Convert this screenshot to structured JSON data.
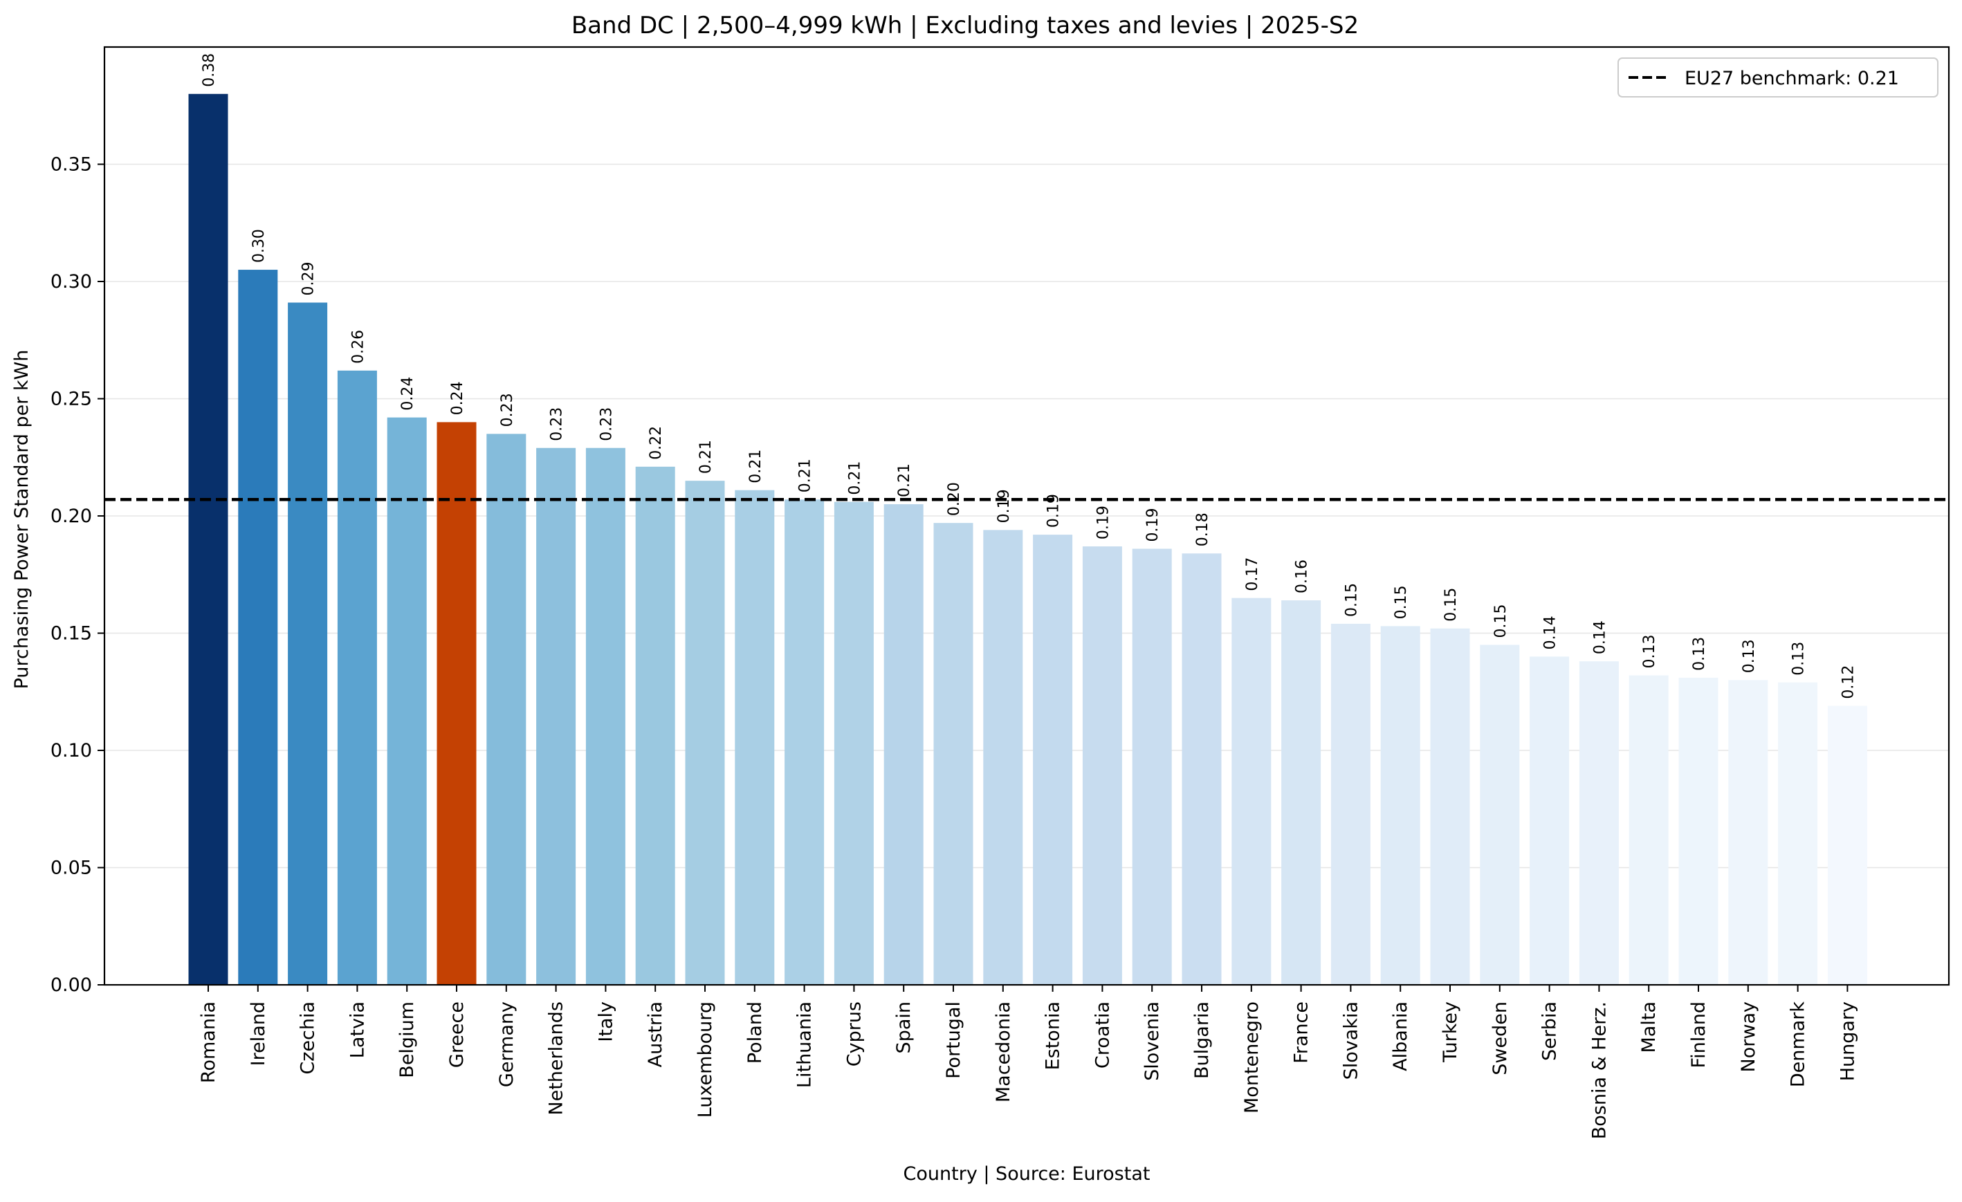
{
  "chart_data": {
    "type": "bar",
    "title": "Band DC | 2,500–4,999 kWh | Excluding taxes and levies | 2025-S2",
    "xlabel": "Country | Source: Eurostat",
    "ylabel": "Purchasing Power Standard per kWh",
    "ylim": [
      0,
      0.4
    ],
    "yticks": [
      "0.00",
      "0.05",
      "0.10",
      "0.15",
      "0.20",
      "0.25",
      "0.30",
      "0.35"
    ],
    "grid": "y",
    "legend": {
      "position": "top-right",
      "label": "EU27 benchmark: 0.21"
    },
    "benchmark": 0.207,
    "highlight": "Greece",
    "categories": [
      "Romania",
      "Ireland",
      "Czechia",
      "Latvia",
      "Belgium",
      "Greece",
      "Germany",
      "Netherlands",
      "Italy",
      "Austria",
      "Luxembourg",
      "Poland",
      "Lithuania",
      "Cyprus",
      "Spain",
      "Portugal",
      "Macedonia",
      "Estonia",
      "Croatia",
      "Slovenia",
      "Bulgaria",
      "Montenegro",
      "France",
      "Slovakia",
      "Albania",
      "Turkey",
      "Sweden",
      "Serbia",
      "Bosnia & Herz.",
      "Malta",
      "Finland",
      "Norway",
      "Denmark",
      "Hungary"
    ],
    "values": [
      0.38,
      0.305,
      0.291,
      0.262,
      0.242,
      0.24,
      0.235,
      0.229,
      0.229,
      0.221,
      0.215,
      0.211,
      0.207,
      0.206,
      0.205,
      0.197,
      0.194,
      0.192,
      0.187,
      0.186,
      0.184,
      0.165,
      0.164,
      0.154,
      0.153,
      0.152,
      0.145,
      0.14,
      0.138,
      0.132,
      0.131,
      0.13,
      0.129,
      0.119
    ],
    "labels": [
      "0.38",
      "0.30",
      "0.29",
      "0.26",
      "0.24",
      "0.24",
      "0.23",
      "0.23",
      "0.23",
      "0.22",
      "0.21",
      "0.21",
      "0.21",
      "0.21",
      "0.21",
      "0.20",
      "0.19",
      "0.19",
      "0.19",
      "0.19",
      "0.18",
      "0.17",
      "0.16",
      "0.15",
      "0.15",
      "0.15",
      "0.15",
      "0.14",
      "0.14",
      "0.13",
      "0.13",
      "0.13",
      "0.13",
      "0.12"
    ],
    "colors": [
      "#08306b",
      "#2b7bba",
      "#3a8ac2",
      "#5ba3d0",
      "#75b4d8",
      "#c44103",
      "#85bcdb",
      "#8dc0dd",
      "#8fc2de",
      "#9ac8e0",
      "#a5cde3",
      "#a9cfe5",
      "#abd0e6",
      "#b0d2e7",
      "#b7d4ea",
      "#bcd7eb",
      "#c0d9ed",
      "#c3daee",
      "#c7dcef",
      "#c9ddf0",
      "#cbdef1",
      "#d5e5f4",
      "#d6e6f4",
      "#dce9f6",
      "#deebf7",
      "#e0ecf8",
      "#e4eff9",
      "#e7f1fa",
      "#e8f1fa",
      "#ecf4fb",
      "#edf5fc",
      "#eef5fc",
      "#eff6fc",
      "#f3f8fe"
    ]
  }
}
